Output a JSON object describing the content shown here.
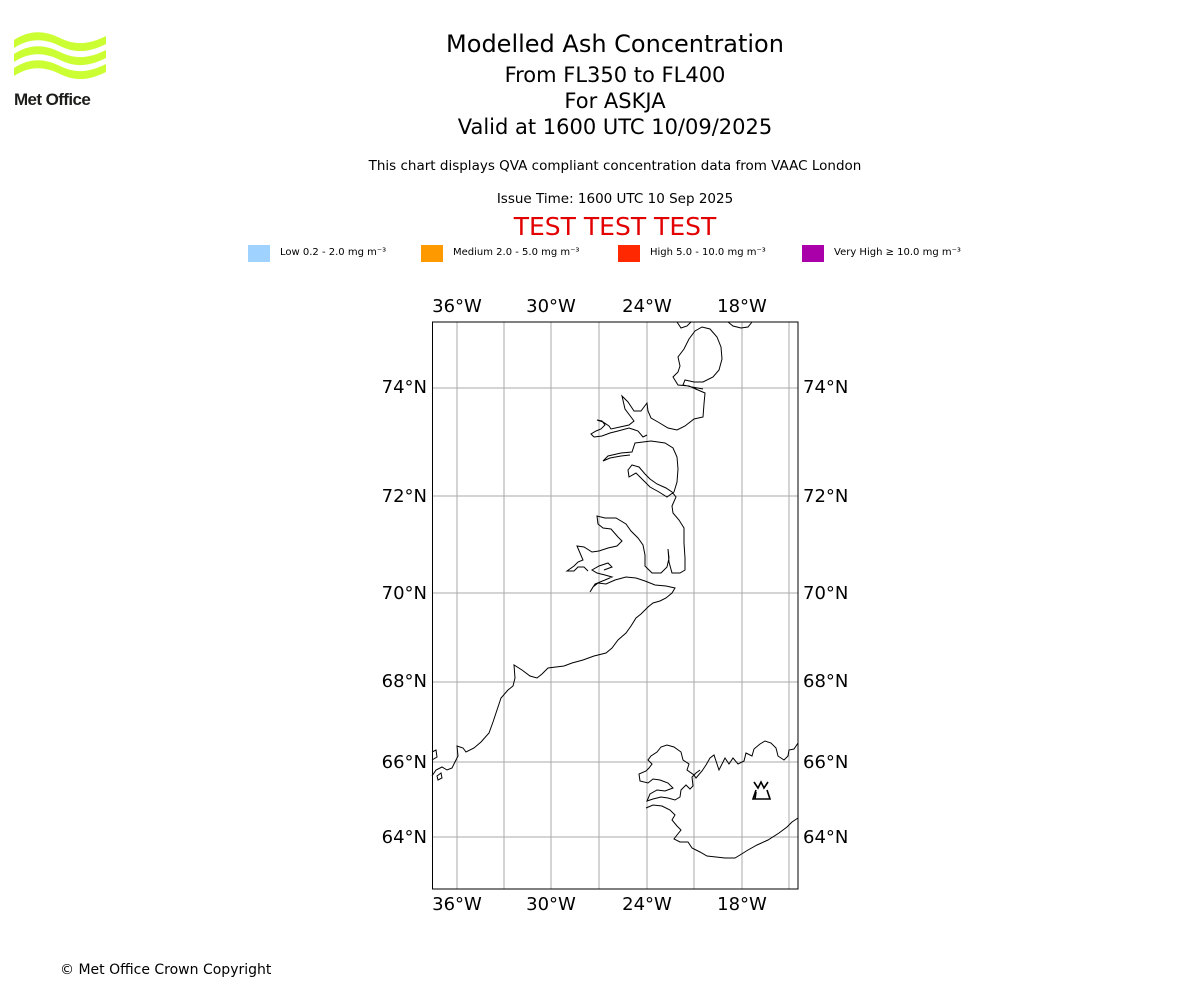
{
  "logo": {
    "text": "Met Office",
    "color": "#ccff33"
  },
  "title": {
    "main": "Modelled Ash Concentration",
    "level": "From FL350 to FL400",
    "volcano": "For ASKJA",
    "valid": "Valid at 1600 UTC 10/09/2025",
    "description": "This chart displays QVA compliant concentration data from VAAC London",
    "issue": "Issue Time: 1600 UTC 10 Sep 2025",
    "test_banner": "TEST TEST TEST"
  },
  "legend": [
    {
      "label": "Low 0.2 - 2.0 mg m⁻³",
      "color": "#a0d2ff"
    },
    {
      "label": "Medium 2.0 - 5.0 mg m⁻³",
      "color": "#ff9900"
    },
    {
      "label": "High 5.0 - 10.0 mg m⁻³",
      "color": "#ff2800"
    },
    {
      "label": "Very High ≥ 10.0 mg m⁻³",
      "color": "#aa00aa"
    }
  ],
  "map": {
    "lon_labels": [
      "36°W",
      "30°W",
      "24°W",
      "18°W"
    ],
    "lat_labels": [
      "74°N",
      "72°N",
      "70°N",
      "68°N",
      "66°N",
      "64°N"
    ],
    "volcano_icon": "volcano-icon",
    "grid_color": "#aaaaaa"
  },
  "footer": {
    "copyright": "© Met Office Crown Copyright"
  }
}
